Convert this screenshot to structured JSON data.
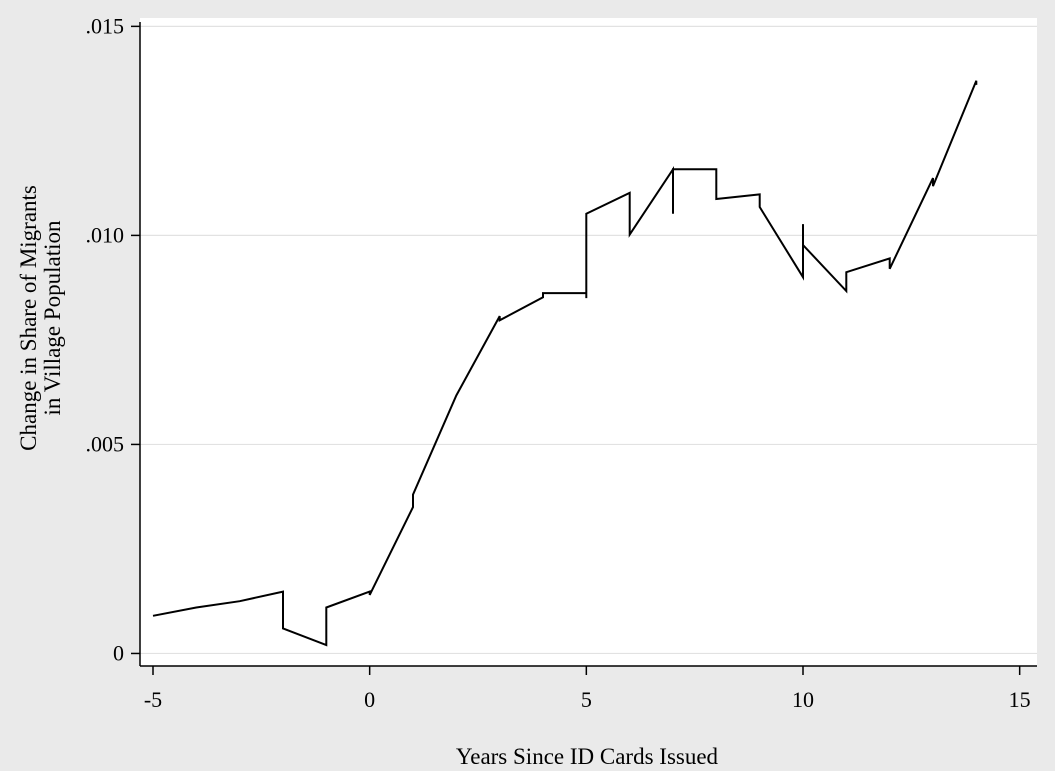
{
  "chart_data": {
    "type": "line",
    "title": "",
    "xlabel": "Years Since ID Cards Issued",
    "ylabel_lines": [
      "Change in Share of Migrants",
      "in Village Population"
    ],
    "xlim": [
      -5.3,
      15.4
    ],
    "ylim": [
      -0.0003,
      0.0152
    ],
    "x_ticks": [
      -5,
      0,
      5,
      10,
      15
    ],
    "x_tick_labels": [
      "-5",
      "0",
      "5",
      "10",
      "15"
    ],
    "y_ticks": [
      0,
      0.005,
      0.01,
      0.015
    ],
    "y_tick_labels": [
      "0",
      ".005",
      ".010",
      ".015"
    ],
    "grid": "horizontal",
    "legend": "none",
    "line_color": "#000000",
    "series": [
      {
        "x": [
          -5,
          -4,
          -3,
          -2,
          -2,
          -1,
          -1,
          0,
          0,
          1,
          1,
          2,
          3,
          3,
          4,
          4,
          5,
          5,
          5,
          6,
          6,
          7,
          7,
          7,
          8,
          8,
          9,
          9,
          10,
          10,
          10,
          11,
          11,
          12,
          12,
          13,
          13,
          14,
          14
        ],
        "y": [
          0.0009,
          0.0011,
          0.00125,
          0.00148,
          0.0006,
          0.0002,
          0.0011,
          0.00148,
          0.0014,
          0.0035,
          0.0038,
          0.00617,
          0.00807,
          0.00797,
          0.00852,
          0.00862,
          0.00862,
          0.0085,
          0.01052,
          0.01102,
          0.01002,
          0.01158,
          0.01052,
          0.01158,
          0.01158,
          0.01087,
          0.01098,
          0.01068,
          0.009,
          0.01027,
          0.00977,
          0.00867,
          0.00912,
          0.00945,
          0.0092,
          0.01137,
          0.01118,
          0.0137,
          0.0136
        ]
      }
    ]
  }
}
